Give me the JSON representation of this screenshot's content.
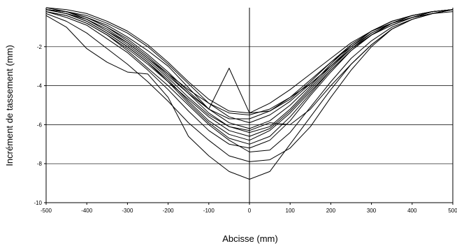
{
  "chart_data": {
    "type": "line",
    "title": "",
    "xlabel": "Abcisse (mm)",
    "ylabel": "Incrément de tassement (mm)",
    "xlim": [
      -500,
      500
    ],
    "ylim": [
      -10,
      0
    ],
    "xticks": [
      -500,
      -400,
      -300,
      -200,
      -100,
      0,
      100,
      200,
      300,
      400,
      500
    ],
    "xtick_labels": [
      "-500",
      "-400",
      "-300",
      "-200",
      "-100",
      "0",
      "100",
      "200",
      "300",
      "400",
      "500"
    ],
    "yticks": [
      -10,
      -8,
      -6,
      -4,
      -2
    ],
    "ytick_labels": [
      "-10",
      "-8",
      "-6",
      "-4",
      "-2"
    ],
    "grid": "horizontal",
    "x": [
      -500,
      -450,
      -400,
      -350,
      -300,
      -250,
      -200,
      -150,
      -100,
      -50,
      0,
      50,
      100,
      150,
      200,
      250,
      300,
      350,
      400,
      450,
      500
    ],
    "series": [
      {
        "values": [
          -0.1,
          -0.3,
          -0.6,
          -1.2,
          -1.8,
          -2.6,
          -3.4,
          -4.2,
          -4.9,
          -5.4,
          -5.5,
          -5.2,
          -4.6,
          -3.9,
          -3.0,
          -2.1,
          -1.4,
          -0.9,
          -0.5,
          -0.3,
          -0.1
        ]
      },
      {
        "values": [
          -0.1,
          -0.2,
          -0.5,
          -1.0,
          -1.6,
          -2.4,
          -3.3,
          -4.3,
          -5.2,
          -5.9,
          -6.2,
          -5.8,
          -5.0,
          -4.0,
          -2.9,
          -1.9,
          -1.2,
          -0.7,
          -0.4,
          -0.2,
          -0.1
        ]
      },
      {
        "values": [
          -0.2,
          -0.4,
          -0.8,
          -1.4,
          -2.1,
          -2.9,
          -3.8,
          -4.7,
          -5.6,
          -6.3,
          -6.6,
          -6.2,
          -5.3,
          -4.2,
          -3.1,
          -2.1,
          -1.3,
          -0.8,
          -0.4,
          -0.2,
          -0.1
        ]
      },
      {
        "values": [
          -0.1,
          -0.3,
          -0.7,
          -1.3,
          -2.0,
          -2.8,
          -3.8,
          -4.9,
          -5.9,
          -6.7,
          -7.0,
          -6.6,
          -5.6,
          -4.4,
          -3.2,
          -2.2,
          -1.4,
          -0.8,
          -0.4,
          -0.2,
          -0.1
        ]
      },
      {
        "values": [
          -0.2,
          -0.5,
          -0.9,
          -1.6,
          -2.3,
          -3.2,
          -4.2,
          -5.3,
          -6.3,
          -7.0,
          -7.2,
          -6.8,
          -5.8,
          -4.5,
          -3.3,
          -2.2,
          -1.4,
          -0.8,
          -0.4,
          -0.2,
          -0.1
        ]
      },
      {
        "values": [
          -0.1,
          -0.2,
          -0.6,
          -1.1,
          -1.8,
          -2.6,
          -3.5,
          -4.4,
          -5.2,
          -5.7,
          -5.7,
          -5.3,
          -4.6,
          -3.7,
          -2.8,
          -2.0,
          -1.3,
          -0.8,
          -0.5,
          -0.2,
          -0.1
        ]
      },
      {
        "values": [
          -0.1,
          -0.3,
          -0.6,
          -1.2,
          -1.9,
          -2.7,
          -3.6,
          -4.6,
          -5.5,
          -6.1,
          -6.4,
          -6.1,
          -5.2,
          -4.1,
          -3.0,
          -2.0,
          -1.2,
          -0.7,
          -0.4,
          -0.2,
          -0.1
        ]
      },
      {
        "values": [
          -0.2,
          -0.4,
          -0.8,
          -1.4,
          -2.2,
          -3.1,
          -4.0,
          -5.0,
          -6.0,
          -6.8,
          -7.4,
          -7.3,
          -6.4,
          -5.1,
          -3.8,
          -2.6,
          -1.7,
          -1.0,
          -0.6,
          -0.3,
          -0.1
        ]
      },
      {
        "values": [
          -0.3,
          -0.7,
          -1.3,
          -2.1,
          -2.9,
          -3.8,
          -4.8,
          -5.9,
          -6.8,
          -7.6,
          -7.9,
          -7.8,
          -7.2,
          -6.1,
          -4.6,
          -3.2,
          -2.0,
          -1.1,
          -0.6,
          -0.3,
          -0.1
        ]
      },
      {
        "values": [
          -0.4,
          -1.0,
          -2.1,
          -2.8,
          -3.3,
          -3.4,
          -4.6,
          -6.6,
          -7.6,
          -8.4,
          -8.8,
          -8.4,
          -7.0,
          -5.6,
          -4.2,
          -2.9,
          -1.9,
          -1.1,
          -0.6,
          -0.3,
          -0.1
        ]
      },
      {
        "values": [
          -0.1,
          -0.2,
          -0.5,
          -0.9,
          -1.5,
          -2.2,
          -3.0,
          -4.1,
          -5.2,
          -3.1,
          -5.4,
          -5.3,
          -4.7,
          -3.8,
          -2.8,
          -1.9,
          -1.2,
          -0.7,
          -0.4,
          -0.2,
          -0.1
        ]
      },
      {
        "values": [
          -0.1,
          -0.3,
          -0.7,
          -1.3,
          -2.0,
          -2.8,
          -3.7,
          -4.8,
          -5.8,
          -6.5,
          -6.8,
          -6.3,
          -5.4,
          -4.3,
          -3.2,
          -2.2,
          -1.4,
          -0.8,
          -0.5,
          -0.2,
          -0.1
        ]
      },
      {
        "values": [
          0.0,
          -0.2,
          -0.4,
          -0.8,
          -1.3,
          -2.0,
          -2.9,
          -3.9,
          -4.9,
          -5.6,
          -5.9,
          -5.5,
          -4.8,
          -3.9,
          -3.0,
          -2.1,
          -1.4,
          -0.9,
          -0.5,
          -0.3,
          -0.1
        ]
      },
      {
        "values": [
          -0.1,
          -0.2,
          -0.5,
          -1.0,
          -1.7,
          -2.5,
          -3.4,
          -4.4,
          -5.4,
          -6.1,
          -6.3,
          -5.9,
          -6.0,
          -5.2,
          -4.0,
          -2.9,
          -1.9,
          -1.1,
          -0.6,
          -0.3,
          -0.1
        ]
      },
      {
        "values": [
          0.0,
          -0.1,
          -0.3,
          -0.7,
          -1.2,
          -1.9,
          -2.8,
          -3.8,
          -4.7,
          -5.3,
          -5.4,
          -4.9,
          -4.2,
          -3.4,
          -2.6,
          -1.8,
          -1.2,
          -0.8,
          -0.5,
          -0.3,
          -0.2
        ]
      }
    ]
  }
}
